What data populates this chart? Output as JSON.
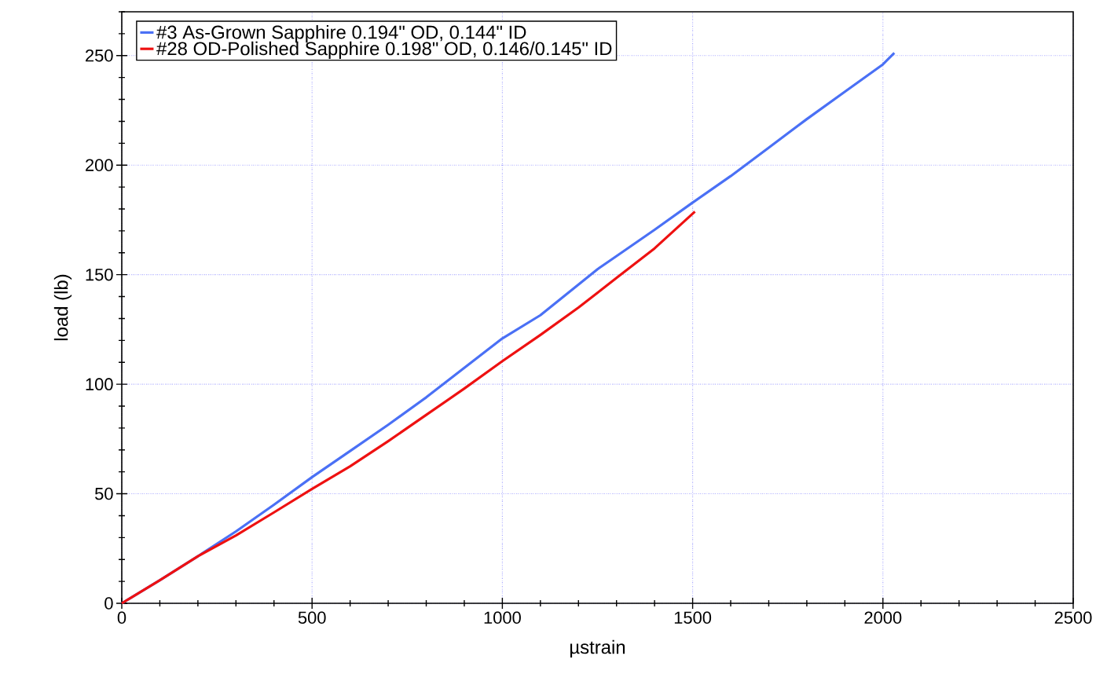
{
  "chart_data": {
    "type": "line",
    "xlabel": "µstrain",
    "ylabel": "load (lb)",
    "xlim": [
      0,
      2500
    ],
    "ylim": [
      0,
      270
    ],
    "xticks": [
      0,
      {
        "value": 100,
        "label": null
      },
      {
        "value": 200,
        "label": null
      },
      {
        "value": 300,
        "label": null
      },
      {
        "value": 400,
        "label": null
      },
      500,
      {
        "value": 600,
        "label": null
      },
      {
        "value": 700,
        "label": null
      },
      {
        "value": 800,
        "label": null
      },
      {
        "value": 900,
        "label": null
      },
      1000,
      {
        "value": 1100,
        "label": null
      },
      {
        "value": 1200,
        "label": null
      },
      {
        "value": 1300,
        "label": null
      },
      {
        "value": 1400,
        "label": null
      },
      1500,
      {
        "value": 1600,
        "label": null
      },
      {
        "value": 1700,
        "label": null
      },
      {
        "value": 1800,
        "label": null
      },
      {
        "value": 1900,
        "label": null
      },
      2000,
      {
        "value": 2100,
        "label": null
      },
      {
        "value": 2200,
        "label": null
      },
      {
        "value": 2300,
        "label": null
      },
      {
        "value": 2400,
        "label": null
      },
      2500
    ],
    "yticks": [
      0,
      {
        "value": 10,
        "label": null
      },
      {
        "value": 20,
        "label": null
      },
      {
        "value": 30,
        "label": null
      },
      {
        "value": 40,
        "label": null
      },
      50,
      {
        "value": 60,
        "label": null
      },
      {
        "value": 70,
        "label": null
      },
      {
        "value": 80,
        "label": null
      },
      {
        "value": 90,
        "label": null
      },
      100,
      {
        "value": 110,
        "label": null
      },
      {
        "value": 120,
        "label": null
      },
      {
        "value": 130,
        "label": null
      },
      {
        "value": 140,
        "label": null
      },
      150,
      {
        "value": 160,
        "label": null
      },
      {
        "value": 170,
        "label": null
      },
      {
        "value": 180,
        "label": null
      },
      {
        "value": 190,
        "label": null
      },
      200,
      {
        "value": 210,
        "label": null
      },
      {
        "value": 220,
        "label": null
      },
      {
        "value": 230,
        "label": null
      },
      {
        "value": 240,
        "label": null
      },
      250,
      {
        "value": 260,
        "label": null
      },
      {
        "value": 270,
        "label": null
      }
    ],
    "grid": true,
    "legend": "top left",
    "series": [
      {
        "name": "#3 As-Grown Sapphire 0.194\" OD, 0.144\" ID",
        "color": "#4a70f5",
        "x": [
          0,
          100,
          200,
          300,
          400,
          500,
          600,
          700,
          800,
          900,
          1000,
          1100,
          1200,
          1250,
          1300,
          1400,
          1500,
          1600,
          1700,
          1750,
          1800,
          1900,
          2000,
          2030
        ],
        "values": [
          0,
          10.5,
          21.5,
          32.8,
          45,
          57.6,
          69.5,
          81.5,
          94,
          107.5,
          120.9,
          131.5,
          145.5,
          152.5,
          158.5,
          170.5,
          182.9,
          195,
          208,
          214.5,
          221,
          233.5,
          246,
          251.2
        ]
      },
      {
        "name": "#28 OD-Polished Sapphire 0.198\" OD, 0.146/0.145\" ID",
        "color": "#ee1111",
        "x": [
          0,
          100,
          200,
          300,
          400,
          500,
          600,
          700,
          800,
          900,
          1000,
          1100,
          1200,
          1300,
          1400,
          1506
        ],
        "values": [
          0,
          10.5,
          21.5,
          31,
          41.5,
          52.2,
          62.5,
          74,
          86,
          98,
          110.5,
          122.5,
          135,
          148.5,
          162,
          178.8
        ]
      }
    ]
  }
}
